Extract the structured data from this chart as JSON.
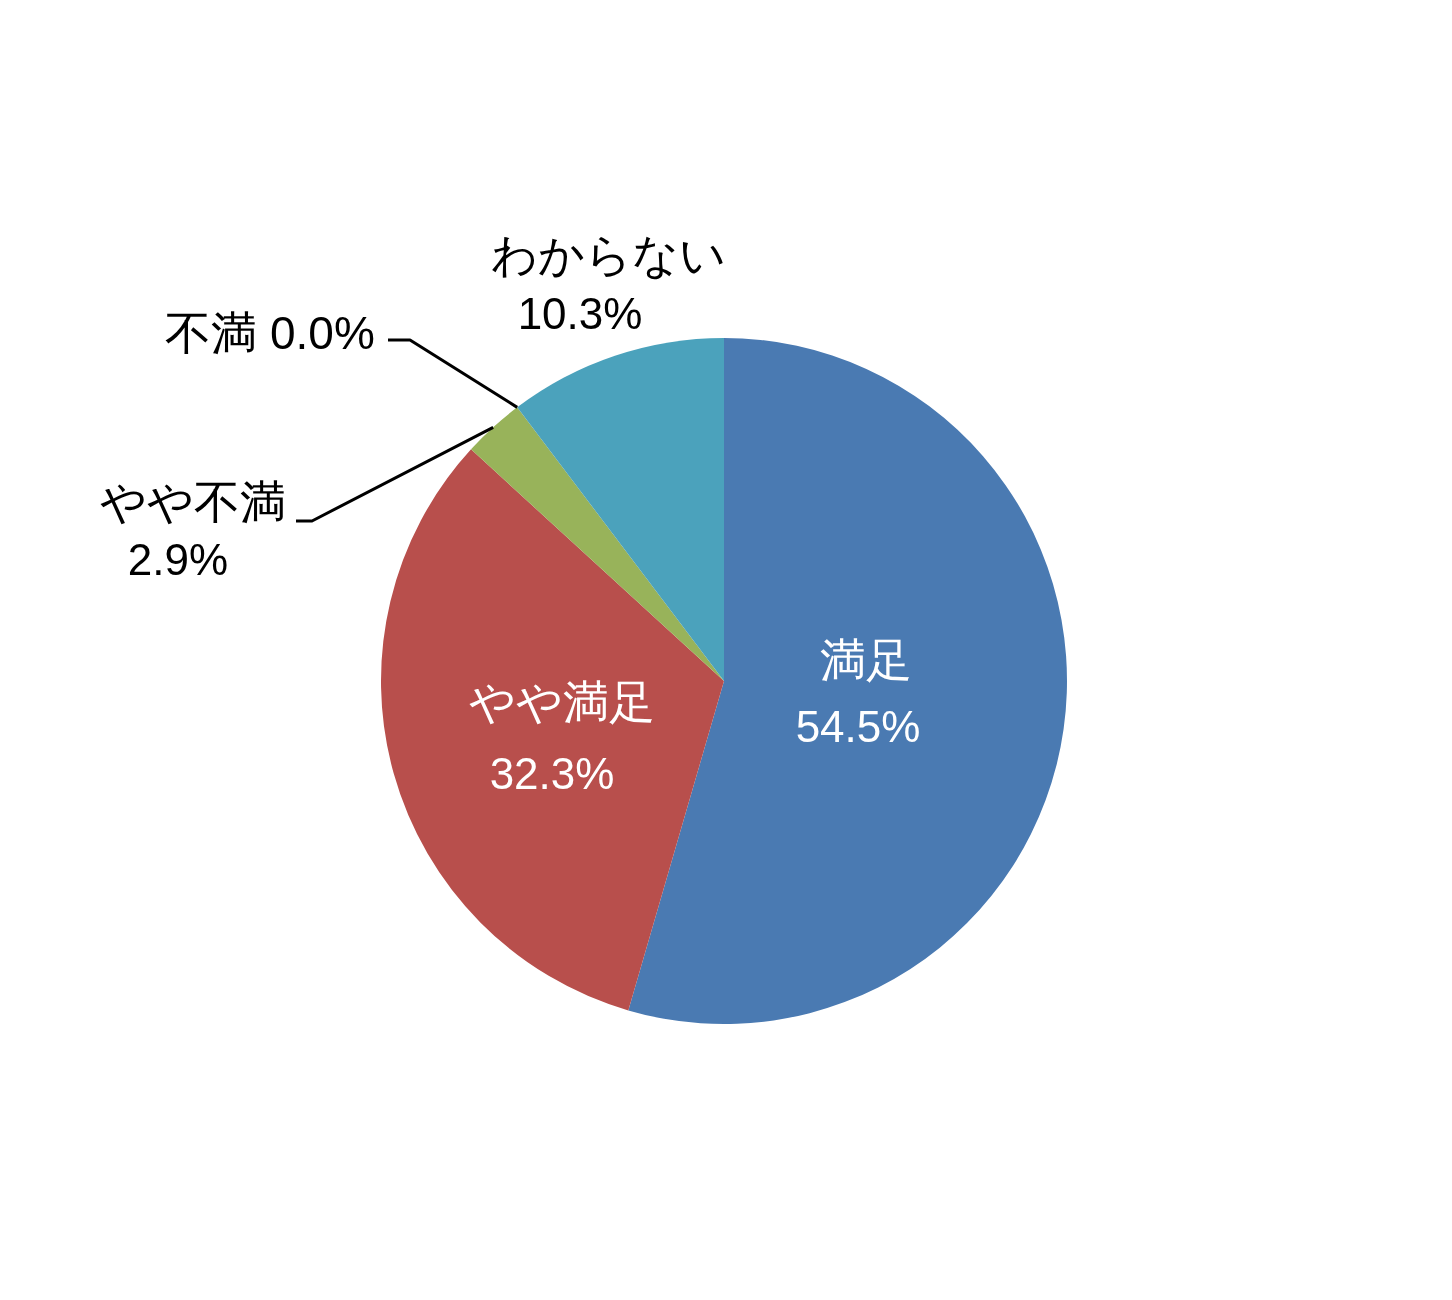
{
  "chart_data": {
    "type": "pie",
    "categories": [
      "満足",
      "やや満足",
      "やや不満",
      "不満",
      "わからない"
    ],
    "values": [
      54.5,
      32.3,
      2.9,
      0.0,
      10.3
    ],
    "colors": [
      "#4a7ab2",
      "#b84f4c",
      "#98b35a",
      "#8064a2",
      "#4ba2bc"
    ],
    "value_labels": [
      "54.5%",
      "32.3%",
      "2.9%",
      "0.0%",
      "10.3%"
    ]
  }
}
